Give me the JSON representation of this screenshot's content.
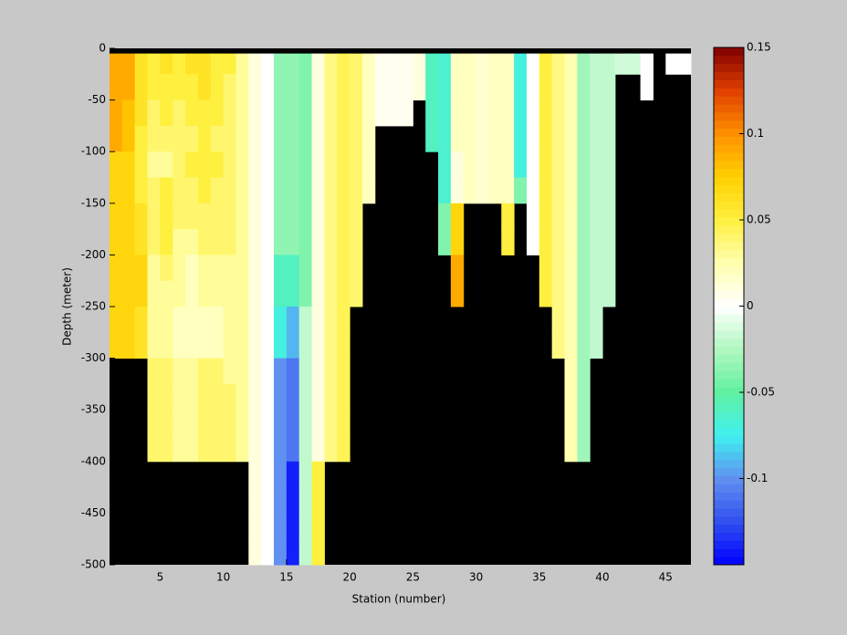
{
  "chart_data": {
    "type": "heatmap",
    "xlabel": "Station (number)",
    "ylabel": "Depth (meter)",
    "xlim": [
      1,
      47
    ],
    "ylim": [
      -500,
      0
    ],
    "xticks": [
      5,
      10,
      15,
      20,
      25,
      30,
      35,
      40,
      45
    ],
    "yticks": [
      0,
      -50,
      -100,
      -150,
      -200,
      -250,
      -300,
      -350,
      -400,
      -450,
      -500
    ],
    "x": [
      1,
      2,
      3,
      4,
      5,
      6,
      7,
      8,
      9,
      10,
      11,
      12,
      13,
      14,
      15,
      16,
      17,
      18,
      19,
      20,
      21,
      22,
      23,
      24,
      25,
      26,
      27,
      28,
      29,
      30,
      31,
      32,
      33,
      34,
      35,
      36,
      37,
      38,
      39,
      40,
      41,
      42,
      43,
      44,
      45,
      46
    ],
    "y_edges": [
      -5,
      -25,
      -50,
      -75,
      -100,
      -125,
      -150,
      -175,
      -200,
      -225,
      -250,
      -275,
      -300,
      -325,
      -350,
      -375,
      -400,
      -425,
      -450,
      -475,
      -500
    ],
    "nan_color": "#000000",
    "clim": [
      -0.15,
      0.15
    ],
    "colorbar_ticks": [
      0.15,
      0.1,
      0.05,
      0,
      -0.05,
      -0.1
    ],
    "colormap": [
      "#0000ff",
      "#3050f0",
      "#6090f0",
      "#40f0f0",
      "#60f0a0",
      "#b0f8c0",
      "#ffffff",
      "#ffffb0",
      "#fff040",
      "#ffd000",
      "#ff9000",
      "#e04000",
      "#800000"
    ],
    "z": [
      [
        0.09,
        0.09,
        0.09,
        0.09,
        0.07,
        0.07,
        0.07,
        0.07,
        0.07,
        0.07,
        0.07,
        0.07,
        null,
        null,
        null,
        null,
        null,
        null,
        null,
        null
      ],
      [
        0.09,
        0.09,
        0.08,
        0.08,
        0.07,
        0.07,
        0.07,
        0.07,
        0.07,
        0.07,
        0.07,
        0.07,
        null,
        null,
        null,
        null,
        null,
        null,
        null,
        null
      ],
      [
        0.06,
        0.06,
        0.06,
        0.05,
        0.05,
        0.05,
        0.06,
        0.06,
        0.07,
        0.07,
        0.06,
        0.06,
        null,
        null,
        null,
        null,
        null,
        null,
        null,
        null
      ],
      [
        0.05,
        0.05,
        0.04,
        0.04,
        0.03,
        0.04,
        0.04,
        0.04,
        0.03,
        0.03,
        0.03,
        0.03,
        0.04,
        0.04,
        0.04,
        0.04,
        null,
        null,
        null,
        null
      ],
      [
        0.06,
        0.05,
        0.05,
        0.04,
        0.03,
        0.05,
        0.05,
        0.05,
        0.04,
        0.03,
        0.03,
        0.03,
        0.04,
        0.04,
        0.04,
        0.04,
        null,
        null,
        null,
        null
      ],
      [
        0.05,
        0.05,
        0.04,
        0.04,
        0.04,
        0.04,
        0.04,
        0.03,
        0.03,
        0.03,
        0.02,
        0.02,
        0.03,
        0.03,
        0.03,
        0.03,
        null,
        null,
        null,
        null
      ],
      [
        0.06,
        0.05,
        0.05,
        0.04,
        0.05,
        0.04,
        0.04,
        0.03,
        0.02,
        0.02,
        0.02,
        0.02,
        0.03,
        0.03,
        0.03,
        0.03,
        null,
        null,
        null,
        null
      ],
      [
        0.06,
        0.06,
        0.05,
        0.05,
        0.05,
        0.05,
        0.04,
        0.04,
        0.03,
        0.03,
        0.02,
        0.02,
        0.04,
        0.04,
        0.04,
        0.04,
        null,
        null,
        null,
        null
      ],
      [
        0.05,
        0.05,
        0.05,
        0.04,
        0.05,
        0.04,
        0.04,
        0.04,
        0.03,
        0.03,
        0.02,
        0.02,
        0.04,
        0.04,
        0.04,
        0.04,
        null,
        null,
        null,
        null
      ],
      [
        0.05,
        0.04,
        0.04,
        0.04,
        0.04,
        0.04,
        0.04,
        0.04,
        0.03,
        0.03,
        0.03,
        0.03,
        0.03,
        0.04,
        0.04,
        0.04,
        null,
        null,
        null,
        null
      ],
      [
        0.03,
        0.03,
        0.03,
        0.03,
        0.03,
        0.03,
        0.03,
        0.03,
        0.03,
        0.03,
        0.03,
        0.03,
        0.03,
        0.03,
        0.03,
        0.03,
        null,
        null,
        null,
        null
      ],
      [
        0.01,
        0.01,
        0.01,
        0.01,
        0.01,
        0.01,
        0.01,
        0.01,
        0.01,
        0.01,
        0.01,
        0.01,
        0.01,
        0.01,
        0.01,
        0.01,
        0.01,
        0.01,
        0.01,
        0.01
      ],
      [
        0,
        0,
        0,
        0,
        0,
        0,
        0,
        0,
        0,
        0,
        0,
        0,
        0,
        0,
        0,
        0,
        0,
        0,
        0,
        0
      ],
      [
        -0.035,
        -0.035,
        -0.035,
        -0.035,
        -0.035,
        -0.035,
        -0.035,
        -0.035,
        -0.06,
        -0.06,
        -0.07,
        -0.07,
        -0.1,
        -0.1,
        -0.1,
        -0.1,
        -0.1,
        -0.1,
        -0.1,
        -0.1
      ],
      [
        -0.035,
        -0.035,
        -0.035,
        -0.035,
        -0.035,
        -0.035,
        -0.035,
        -0.035,
        -0.06,
        -0.06,
        -0.09,
        -0.09,
        -0.11,
        -0.11,
        -0.11,
        -0.11,
        -0.14,
        -0.14,
        -0.14,
        -0.14
      ],
      [
        -0.04,
        -0.04,
        -0.04,
        -0.04,
        -0.04,
        -0.04,
        -0.04,
        -0.04,
        -0.04,
        -0.04,
        -0.02,
        -0.02,
        -0.02,
        -0.02,
        -0.02,
        -0.02,
        -0.02,
        -0.02,
        -0.02,
        -0.02
      ],
      [
        0.01,
        0.01,
        0.01,
        0.01,
        0.01,
        0.01,
        0.01,
        0.01,
        0.01,
        0.01,
        0.01,
        0.01,
        0.01,
        0.01,
        0.01,
        0.01,
        0.05,
        0.05,
        0.05,
        0.05
      ],
      [
        0.035,
        0.035,
        0.035,
        0.035,
        0.035,
        0.035,
        0.035,
        0.035,
        0.035,
        0.035,
        0.035,
        0.035,
        0.035,
        0.035,
        0.035,
        0.035,
        null,
        null,
        null,
        null
      ],
      [
        0.045,
        0.045,
        0.045,
        0.045,
        0.045,
        0.045,
        0.045,
        0.045,
        0.045,
        0.045,
        0.045,
        0.045,
        0.045,
        0.045,
        0.045,
        0.045,
        null,
        null,
        null,
        null
      ],
      [
        0.04,
        0.04,
        0.04,
        0.04,
        0.04,
        0.04,
        0.04,
        0.04,
        0.04,
        0.04,
        null,
        null,
        null,
        null,
        null,
        null,
        null,
        null,
        null,
        null
      ],
      [
        0.02,
        0.02,
        0.02,
        0.02,
        0.02,
        0.02,
        null,
        null,
        null,
        null,
        null,
        null,
        null,
        null,
        null,
        null,
        null,
        null,
        null,
        null
      ],
      [
        0.005,
        0.005,
        0.005,
        null,
        null,
        null,
        null,
        null,
        null,
        null,
        null,
        null,
        null,
        null,
        null,
        null,
        null,
        null,
        null,
        null
      ],
      [
        0.005,
        0.005,
        0.005,
        null,
        null,
        null,
        null,
        null,
        null,
        null,
        null,
        null,
        null,
        null,
        null,
        null,
        null,
        null,
        null,
        null
      ],
      [
        0.005,
        0.005,
        0.005,
        null,
        null,
        null,
        null,
        null,
        null,
        null,
        null,
        null,
        null,
        null,
        null,
        null,
        null,
        null,
        null,
        null
      ],
      [
        0.01,
        0.01,
        null,
        null,
        null,
        null,
        null,
        null,
        null,
        null,
        null,
        null,
        null,
        null,
        null,
        null,
        null,
        null,
        null,
        null
      ],
      [
        -0.06,
        -0.06,
        -0.06,
        -0.06,
        null,
        null,
        null,
        null,
        null,
        null,
        null,
        null,
        null,
        null,
        null,
        null,
        null,
        null,
        null,
        null
      ],
      [
        -0.065,
        -0.065,
        -0.065,
        -0.065,
        -0.065,
        -0.065,
        -0.04,
        -0.04,
        null,
        null,
        null,
        null,
        null,
        null,
        null,
        null,
        null,
        null,
        null,
        null
      ],
      [
        0.02,
        0.02,
        0.02,
        0.02,
        0.01,
        0.01,
        0.07,
        0.07,
        0.09,
        0.09,
        null,
        null,
        null,
        null,
        null,
        null,
        null,
        null,
        null,
        null
      ],
      [
        0.02,
        0.02,
        0.02,
        0.02,
        0.02,
        0.02,
        null,
        null,
        null,
        null,
        null,
        null,
        null,
        null,
        null,
        null,
        null,
        null,
        null,
        null
      ],
      [
        0.015,
        0.015,
        0.015,
        0.015,
        0.015,
        0.015,
        null,
        null,
        null,
        null,
        null,
        null,
        null,
        null,
        null,
        null,
        null,
        null,
        null,
        null
      ],
      [
        0.02,
        0.02,
        0.02,
        0.02,
        0.02,
        0.02,
        null,
        null,
        null,
        null,
        null,
        null,
        null,
        null,
        null,
        null,
        null,
        null,
        null,
        null
      ],
      [
        0.02,
        0.02,
        0.02,
        0.02,
        0.02,
        0.02,
        0.05,
        0.05,
        null,
        null,
        null,
        null,
        null,
        null,
        null,
        null,
        null,
        null,
        null,
        null
      ],
      [
        -0.07,
        -0.07,
        -0.07,
        -0.07,
        -0.07,
        -0.04,
        null,
        null,
        null,
        null,
        null,
        null,
        null,
        null,
        null,
        null,
        null,
        null,
        null,
        null
      ],
      [
        0,
        0,
        0,
        0,
        0,
        0,
        0,
        0,
        null,
        null,
        null,
        null,
        null,
        null,
        null,
        null,
        null,
        null,
        null,
        null
      ],
      [
        0.05,
        0.05,
        0.05,
        0.05,
        0.05,
        0.05,
        0.05,
        0.05,
        0.05,
        0.05,
        null,
        null,
        null,
        null,
        null,
        null,
        null,
        null,
        null,
        null
      ],
      [
        0.035,
        0.035,
        0.035,
        0.035,
        0.035,
        0.035,
        0.035,
        0.035,
        0.035,
        0.035,
        0.035,
        0.035,
        null,
        null,
        null,
        null,
        null,
        null,
        null,
        null
      ],
      [
        0.025,
        0.025,
        0.025,
        0.025,
        0.025,
        0.025,
        0.025,
        0.025,
        0.025,
        0.025,
        0.025,
        0.025,
        0.025,
        0.025,
        0.025,
        0.025,
        null,
        null,
        null,
        null
      ],
      [
        -0.03,
        -0.03,
        -0.03,
        -0.03,
        -0.03,
        -0.03,
        -0.03,
        -0.03,
        -0.03,
        -0.03,
        -0.03,
        -0.03,
        -0.03,
        -0.03,
        -0.03,
        -0.03,
        null,
        null,
        null,
        null
      ],
      [
        -0.02,
        -0.02,
        -0.02,
        -0.02,
        -0.02,
        -0.02,
        -0.02,
        -0.02,
        -0.02,
        -0.02,
        -0.02,
        -0.02,
        null,
        null,
        null,
        null,
        null,
        null,
        null,
        null
      ],
      [
        -0.02,
        -0.02,
        -0.02,
        -0.02,
        -0.02,
        -0.02,
        -0.02,
        -0.02,
        -0.02,
        -0.02,
        null,
        null,
        null,
        null,
        null,
        null,
        null,
        null,
        null,
        null
      ],
      [
        -0.015,
        null,
        null,
        null,
        null,
        null,
        null,
        null,
        null,
        null,
        null,
        null,
        null,
        null,
        null,
        null,
        null,
        null,
        null,
        null
      ],
      [
        -0.015,
        null,
        null,
        null,
        null,
        null,
        null,
        null,
        null,
        null,
        null,
        null,
        null,
        null,
        null,
        null,
        null,
        null,
        null,
        null
      ],
      [
        0,
        0,
        null,
        null,
        null,
        null,
        null,
        null,
        null,
        null,
        null,
        null,
        null,
        null,
        null,
        null,
        null,
        null,
        null,
        null
      ],
      [
        null,
        null,
        null,
        null,
        null,
        null,
        null,
        null,
        null,
        null,
        null,
        null,
        null,
        null,
        null,
        null,
        null,
        null,
        null,
        null
      ],
      [
        0,
        null,
        null,
        null,
        null,
        null,
        null,
        null,
        null,
        null,
        null,
        null,
        null,
        null,
        null,
        null,
        null,
        null,
        null,
        null
      ],
      [
        0,
        null,
        null,
        null,
        null,
        null,
        null,
        null,
        null,
        null,
        null,
        null,
        null,
        null,
        null,
        null,
        null,
        null,
        null,
        null
      ]
    ]
  }
}
